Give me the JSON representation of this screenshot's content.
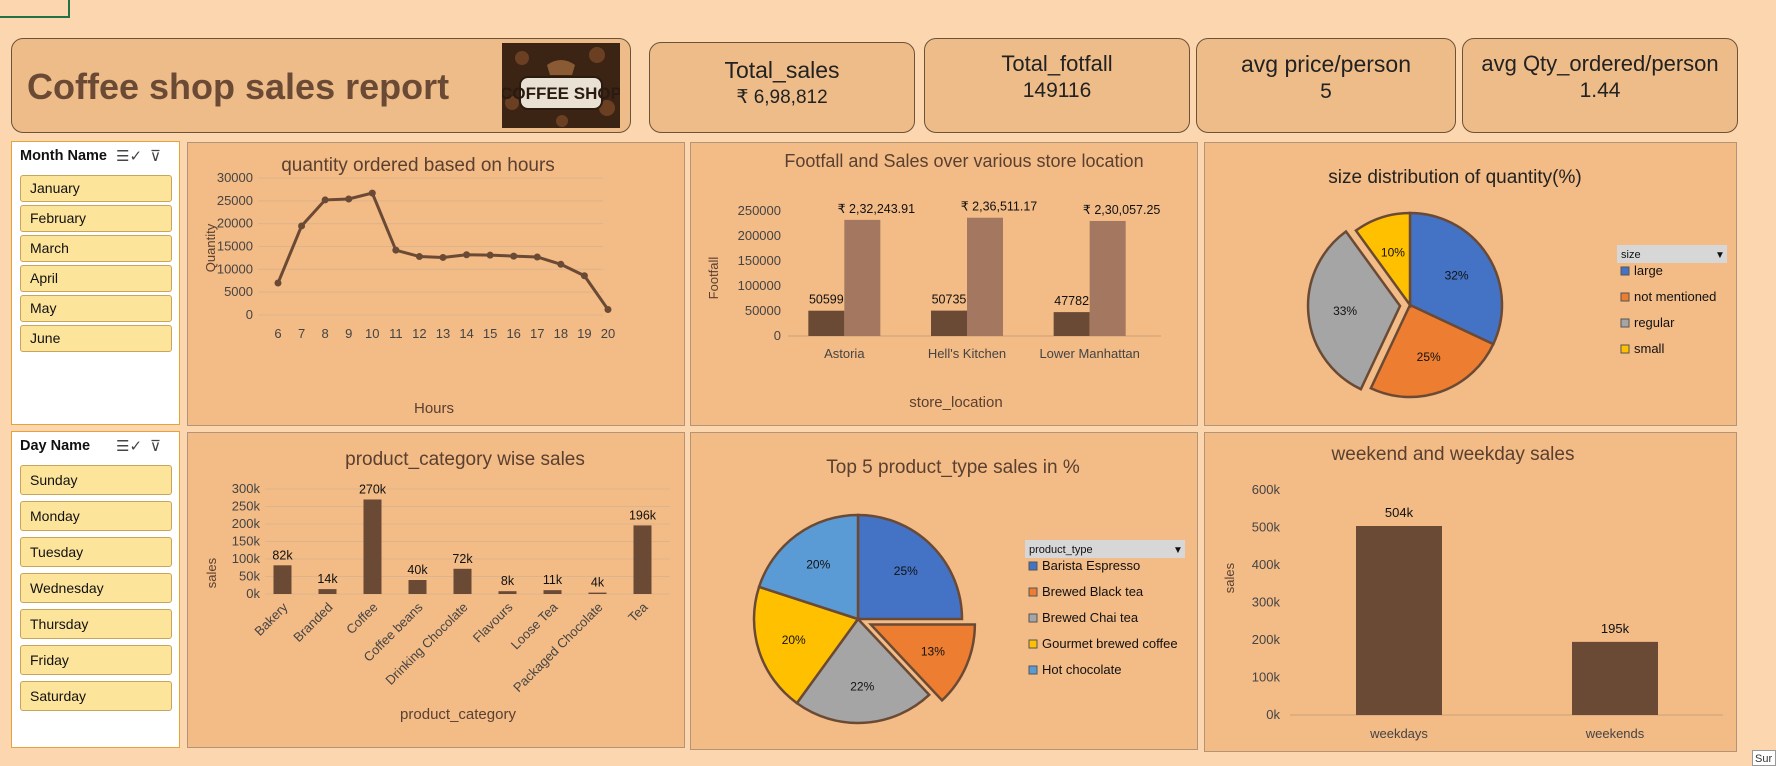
{
  "report": {
    "title": "Coffee shop sales report",
    "logo_text": "COFFEE SHOP"
  },
  "kpis": [
    {
      "title": "Total_sales",
      "value": "₹ 6,98,812"
    },
    {
      "title": "Total_fotfall",
      "value": "149116"
    },
    {
      "title": "avg price/person",
      "value": "5"
    },
    {
      "title": "avg Qty_ordered/person",
      "value": "1.44"
    }
  ],
  "slicers": {
    "month": {
      "header": "Month Name",
      "items": [
        "January",
        "February",
        "March",
        "April",
        "May",
        "June"
      ]
    },
    "day": {
      "header": "Day Name",
      "items": [
        "Sunday",
        "Monday",
        "Tuesday",
        "Wednesday",
        "Thursday",
        "Friday",
        "Saturday"
      ]
    }
  },
  "colors": {
    "bar_dark": "#6b4a35",
    "bar_light": "#a47860",
    "blue": "#4472c4",
    "orange": "#ed7d31",
    "gray": "#a5a5a5",
    "yellow": "#ffc000",
    "light_blue": "#5b9bd5"
  },
  "status_corner": "Sur",
  "chart_data": [
    {
      "id": "hours",
      "type": "line",
      "title": "quantity ordered based on hours",
      "xlabel": "Hours",
      "ylabel": "Quantity",
      "x": [
        6,
        7,
        8,
        9,
        10,
        11,
        12,
        13,
        14,
        15,
        16,
        17,
        18,
        19,
        20
      ],
      "values": [
        7000,
        19500,
        25200,
        25400,
        26700,
        14200,
        12800,
        12600,
        13200,
        13100,
        12900,
        12700,
        11100,
        8600,
        1200
      ],
      "ylim": [
        0,
        30000
      ],
      "yticks": [
        0,
        5000,
        10000,
        15000,
        20000,
        25000,
        30000
      ],
      "grid": true
    },
    {
      "id": "store",
      "type": "bar",
      "title": "Footfall and Sales over various store location",
      "xlabel": "store_location",
      "ylabel": "Footfall",
      "categories": [
        "Astoria",
        "Hell's Kitchen",
        "Lower Manhattan"
      ],
      "series": [
        {
          "values": [
            50599,
            50735,
            47782
          ],
          "labels": [
            "50599",
            "50735",
            "47782"
          ]
        },
        {
          "values": [
            232243.91,
            236511.17,
            230057.25
          ],
          "labels": [
            "₹ 2,32,243.91",
            "₹ 2,36,511.17",
            "₹ 2,30,057.25"
          ]
        }
      ],
      "ylim": [
        0,
        250000
      ],
      "yticks": [
        0,
        50000,
        100000,
        150000,
        200000,
        250000
      ]
    },
    {
      "id": "size",
      "type": "pie",
      "title": "size distribution of quantity(%)",
      "legend_title": "size",
      "categories": [
        "large",
        "not mentioned",
        "regular",
        "small"
      ],
      "values": [
        32,
        25,
        33,
        10
      ],
      "labels": [
        "32%",
        "25%",
        "33%",
        "10%"
      ],
      "exploded": "regular",
      "legend": "right"
    },
    {
      "id": "category",
      "type": "bar",
      "title": "product_category wise sales",
      "xlabel": "product_category",
      "ylabel": "sales",
      "categories": [
        "Bakery",
        "Branded",
        "Coffee",
        "Coffee beans",
        "Drinking Chocolate",
        "Flavours",
        "Loose Tea",
        "Packaged Chocolate",
        "Tea"
      ],
      "values": [
        82000,
        14000,
        270000,
        40000,
        72000,
        8000,
        11000,
        4000,
        196000
      ],
      "labels": [
        "82k",
        "14k",
        "270k",
        "40k",
        "72k",
        "8k",
        "11k",
        "4k",
        "196k"
      ],
      "ylim": [
        0,
        300000
      ],
      "yticks": [
        "0k",
        "50k",
        "100k",
        "150k",
        "200k",
        "250k",
        "300k"
      ],
      "grid": true
    },
    {
      "id": "ptype",
      "type": "pie",
      "title": "Top 5 product_type sales in %",
      "legend_title": "product_type",
      "categories": [
        "Barista Espresso",
        "Brewed Black tea",
        "Brewed Chai tea",
        "Gourmet brewed coffee",
        "Hot chocolate"
      ],
      "values": [
        25,
        13,
        22,
        20,
        20
      ],
      "labels": [
        "25%",
        "13%",
        "22%",
        "20%",
        "20%"
      ],
      "exploded": "Brewed Black tea",
      "legend": "right"
    },
    {
      "id": "week",
      "type": "bar",
      "title": "weekend and weekday sales",
      "ylabel": "sales",
      "categories": [
        "weekdays",
        "weekends"
      ],
      "values": [
        504000,
        195000
      ],
      "labels": [
        "504k",
        "195k"
      ],
      "ylim": [
        0,
        600000
      ],
      "yticks": [
        "0k",
        "100k",
        "200k",
        "300k",
        "400k",
        "500k",
        "600k"
      ]
    }
  ]
}
